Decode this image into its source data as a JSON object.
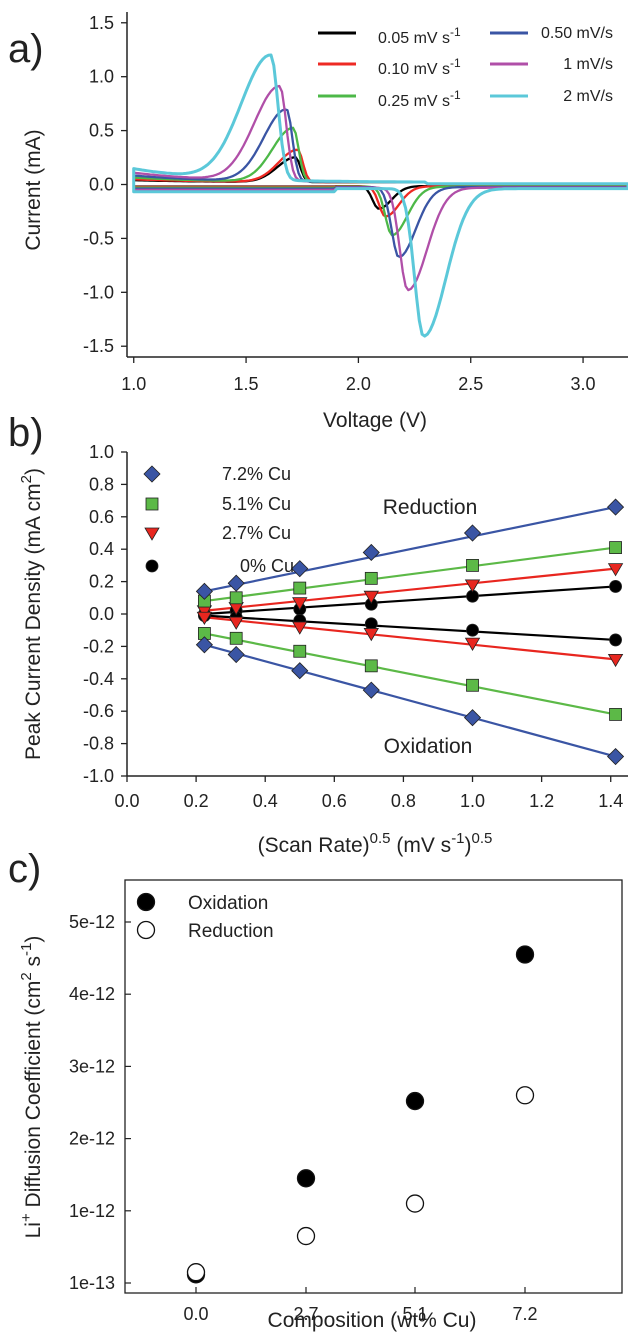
{
  "chart_data": [
    {
      "panel": "a)",
      "type": "line",
      "xlabel": "Voltage (V)",
      "ylabel": "Current (mA)",
      "xlim": [
        0.97,
        3.2
      ],
      "ylim": [
        -1.6,
        1.6
      ],
      "xticks": [
        "1.0",
        "1.5",
        "2.0",
        "2.5",
        "3.0"
      ],
      "yticks": [
        "-1.5",
        "-1.0",
        "-0.5",
        "0.0",
        "0.5",
        "1.0",
        "1.5"
      ],
      "legend": "top-right",
      "series": [
        {
          "name": "0.05 mV s-1",
          "color": "#000000",
          "oxidation_peak": {
            "x": 1.72,
            "y": 0.23
          },
          "reduction_peak": {
            "x": 2.09,
            "y": -0.21
          }
        },
        {
          "name": "0.10 mV s-1",
          "color": "#ee2a24",
          "oxidation_peak": {
            "x": 1.73,
            "y": 0.3
          },
          "reduction_peak": {
            "x": 2.12,
            "y": -0.28
          }
        },
        {
          "name": "0.25 mV s-1",
          "color": "#4db848",
          "oxidation_peak": {
            "x": 1.71,
            "y": 0.5
          },
          "reduction_peak": {
            "x": 2.15,
            "y": -0.45
          }
        },
        {
          "name": "0.50 mV/s",
          "color": "#3a55a4",
          "oxidation_peak": {
            "x": 1.68,
            "y": 0.67
          },
          "reduction_peak": {
            "x": 2.18,
            "y": -0.65
          }
        },
        {
          "name": "1 mV/s",
          "color": "#b04fa8",
          "oxidation_peak": {
            "x": 1.65,
            "y": 0.88
          },
          "reduction_peak": {
            "x": 2.22,
            "y": -0.95
          }
        },
        {
          "name": "2 mV/s",
          "color": "#5bc8d9",
          "oxidation_peak": {
            "x": 1.61,
            "y": 1.16
          },
          "reduction_peak": {
            "x": 2.29,
            "y": -1.37
          }
        }
      ]
    },
    {
      "panel": "b)",
      "type": "scatter",
      "xlabel_main": "(Scan Rate)",
      "xlabel_exp1": "0.5",
      "xlabel_mid": " (mV s",
      "xlabel_exp2": "-1",
      "xlabel_close": ")",
      "xlabel_exp3": "0.5",
      "ylabel_main": "Peak Current Density (mA cm",
      "ylabel_exp": "2",
      "ylabel_close": ")",
      "xlim": [
        0.0,
        1.45
      ],
      "ylim": [
        -1.0,
        1.0
      ],
      "xticks": [
        "0.0",
        "0.2",
        "0.4",
        "0.6",
        "0.8",
        "1.0",
        "1.2",
        "1.4"
      ],
      "yticks": [
        "-1.0",
        "-0.8",
        "-0.6",
        "-0.4",
        "-0.2",
        "0.0",
        "0.2",
        "0.4",
        "0.6",
        "0.8",
        "1.0"
      ],
      "annotations": [
        "Reduction",
        "Oxidation"
      ],
      "legend": "top-left",
      "x": [
        0.224,
        0.316,
        0.5,
        0.707,
        1.0,
        1.414
      ],
      "series": [
        {
          "name": "7.2% Cu",
          "marker": "diamond",
          "color": "#3a55a4",
          "reduction": [
            0.14,
            0.19,
            0.28,
            0.38,
            0.5,
            0.66
          ],
          "oxidation": [
            -0.19,
            -0.25,
            -0.35,
            -0.47,
            -0.64,
            -0.88
          ]
        },
        {
          "name": "5.1% Cu",
          "marker": "square",
          "color": "#5cb947",
          "reduction": [
            0.08,
            0.1,
            0.16,
            0.22,
            0.3,
            0.41
          ],
          "oxidation": [
            -0.12,
            -0.15,
            -0.23,
            -0.32,
            -0.44,
            -0.62
          ]
        },
        {
          "name": "2.7% Cu",
          "marker": "triangle-down",
          "color": "#e8261f",
          "reduction": [
            0.02,
            0.04,
            0.07,
            0.11,
            0.18,
            0.28
          ],
          "oxidation": [
            -0.02,
            -0.05,
            -0.08,
            -0.12,
            -0.18,
            -0.28
          ]
        },
        {
          "name": "0% Cu",
          "marker": "circle",
          "color": "#000000",
          "reduction": [
            0.0,
            0.02,
            0.03,
            0.06,
            0.11,
            0.17
          ],
          "oxidation": [
            -0.01,
            -0.02,
            -0.04,
            -0.06,
            -0.1,
            -0.16
          ]
        }
      ]
    },
    {
      "panel": "c)",
      "type": "scatter",
      "xlabel": "Composition (wt% Cu)",
      "ylabel_pre": "Li",
      "ylabel_sup1": "+",
      "ylabel_mid": " Diffusion Coefficient (cm",
      "ylabel_sup2": "2",
      "ylabel_mid2": " s",
      "ylabel_sup3": "-1",
      "ylabel_close": ")",
      "categories": [
        "0.0",
        "2.7",
        "5.1",
        "7.2"
      ],
      "yticks": [
        "1e-13",
        "1e-12",
        "2e-12",
        "3e-12",
        "4e-12",
        "5e-12"
      ],
      "ytick_values": [
        0,
        1,
        2,
        3,
        4,
        5
      ],
      "legend": "top-left",
      "series": [
        {
          "name": "Oxidation",
          "fill": "#000000",
          "values": [
            0.12,
            1.45,
            2.52,
            4.55
          ]
        },
        {
          "name": "Reduction",
          "fill": "#ffffff",
          "values": [
            0.15,
            0.65,
            1.1,
            2.6
          ]
        }
      ]
    }
  ]
}
